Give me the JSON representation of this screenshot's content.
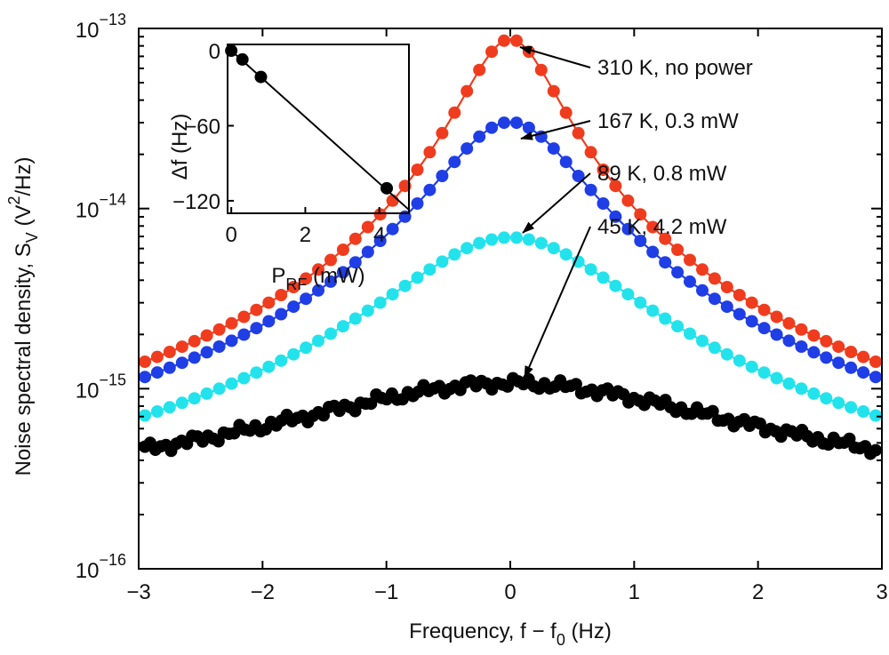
{
  "chart_data": [
    {
      "type": "scatter",
      "title": "",
      "xlabel": {
        "main": "Frequency, f − f",
        "sub": "0",
        "unit": " (Hz)"
      },
      "ylabel": {
        "main": "Noise spectral density, S",
        "sub": "V",
        "open": " (V",
        "sup": "2",
        "close": "/Hz)"
      },
      "xlim": [
        -3,
        3
      ],
      "ylim_log10": [
        -16,
        -13
      ],
      "yscale": "log",
      "x_ticks": [
        {
          "value": -3,
          "label": "−3"
        },
        {
          "value": -2,
          "label": "−2"
        },
        {
          "value": -1,
          "label": "−1"
        },
        {
          "value": 0,
          "label": "0"
        },
        {
          "value": 1,
          "label": "1"
        },
        {
          "value": 2,
          "label": "2"
        },
        {
          "value": 3,
          "label": "3"
        }
      ],
      "y_ticks": [
        {
          "exp": -16,
          "base": "10",
          "sup": "−16"
        },
        {
          "exp": -15,
          "base": "10",
          "sup": "−15"
        },
        {
          "exp": -14,
          "base": "10",
          "sup": "−14"
        },
        {
          "exp": -13,
          "base": "10",
          "sup": "−13"
        }
      ],
      "series": [
        {
          "name": "310 K, no power",
          "color": "#f03c1e",
          "peak_log10": -13.06,
          "floor_log10": -15.87,
          "width_hz": 0.36,
          "noise": 0.0
        },
        {
          "name": "167 K, 0.3 mW",
          "color": "#1f3ee6",
          "peak_log10": -13.52,
          "floor_log10": -15.82,
          "width_hz": 0.55,
          "noise": 0.0
        },
        {
          "name": "89 K, 0.8 mW",
          "color": "#22e3ec",
          "peak_log10": -14.16,
          "floor_log10": -15.88,
          "width_hz": 0.9,
          "noise": 0.0
        },
        {
          "name": "45 K, 4.2 mW",
          "color": "#000000",
          "peak_log10": -14.97,
          "floor_log10": -15.68,
          "width_hz": 1.9,
          "noise": 0.035
        }
      ],
      "annotations": [
        {
          "text": "310 K, no power",
          "series": 0
        },
        {
          "text": "167 K, 0.3 mW",
          "series": 1
        },
        {
          "text": "89 K, 0.8 mW",
          "series": 2
        },
        {
          "text": "45 K, 4.2 mW",
          "series": 3
        }
      ]
    },
    {
      "type": "line",
      "title": "inset",
      "xlabel": {
        "main": "P",
        "sub": "RF",
        "unit": " (mW)"
      },
      "ylabel": {
        "main": "Δf (Hz)"
      },
      "xlim": [
        -0.1,
        4.8
      ],
      "ylim": [
        -130,
        5
      ],
      "x_ticks": [
        {
          "value": 0,
          "label": "0"
        },
        {
          "value": 2,
          "label": "2"
        },
        {
          "value": 4,
          "label": "4"
        }
      ],
      "y_ticks": [
        {
          "value": 0,
          "label": "0"
        },
        {
          "value": -60,
          "label": "−60"
        },
        {
          "value": -120,
          "label": "−120"
        }
      ],
      "x": [
        0,
        0.3,
        0.8,
        4.2
      ],
      "y": [
        0,
        -7,
        -21,
        -110
      ],
      "fit_slope": -26.5
    }
  ]
}
